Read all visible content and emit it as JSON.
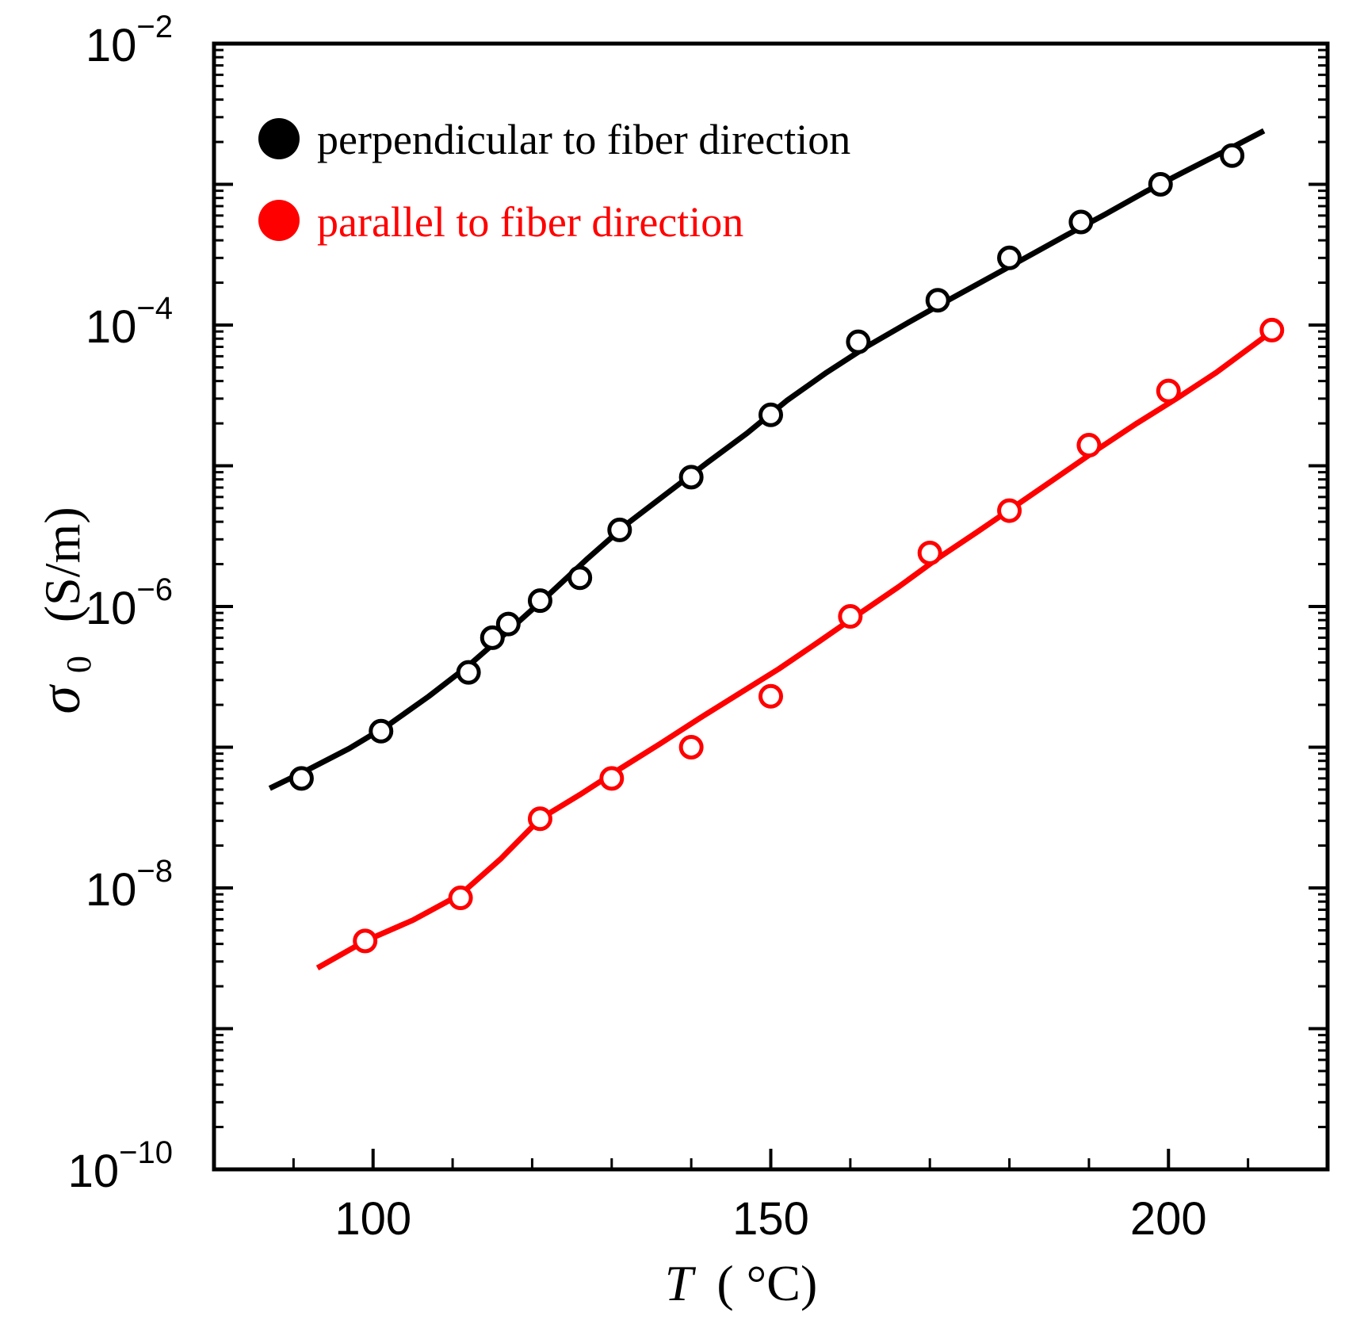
{
  "chart_data": {
    "type": "line",
    "title": "",
    "xlabel": {
      "symbol": "T",
      "unit": "( °C)"
    },
    "ylabel": {
      "symbol": "σ",
      "subscript": "0",
      "unit": "(S/m)"
    },
    "xlim": [
      80,
      220
    ],
    "ylim_exponent": [
      -10,
      -2
    ],
    "yscale": "log",
    "x_ticks": [
      100,
      150,
      200
    ],
    "x_tick_labels": [
      "100",
      "150",
      "200"
    ],
    "y_ticks": [
      {
        "exp": -10,
        "base": "10",
        "sup": "−10"
      },
      {
        "exp": -8,
        "base": "10",
        "sup": "−8"
      },
      {
        "exp": -6,
        "base": "10",
        "sup": "−6"
      },
      {
        "exp": -4,
        "base": "10",
        "sup": "−4"
      },
      {
        "exp": -2,
        "base": "10",
        "sup": "−2"
      }
    ],
    "legend_position": "top-left",
    "series": [
      {
        "name": "perpendicular to fiber direction",
        "color": "#000000",
        "points": [
          {
            "x": 91,
            "y": 6e-08
          },
          {
            "x": 101,
            "y": 1.3e-07
          },
          {
            "x": 112,
            "y": 3.4e-07
          },
          {
            "x": 115,
            "y": 6e-07
          },
          {
            "x": 117,
            "y": 7.5e-07
          },
          {
            "x": 121,
            "y": 1.1e-06
          },
          {
            "x": 126,
            "y": 1.6e-06
          },
          {
            "x": 131,
            "y": 3.5e-06
          },
          {
            "x": 140,
            "y": 8.3e-06
          },
          {
            "x": 150,
            "y": 2.3e-05
          },
          {
            "x": 161,
            "y": 7.6e-05
          },
          {
            "x": 171,
            "y": 0.00015
          },
          {
            "x": 180,
            "y": 0.0003
          },
          {
            "x": 189,
            "y": 0.00054
          },
          {
            "x": 199,
            "y": 0.001
          },
          {
            "x": 208,
            "y": 0.0016
          }
        ],
        "fit": [
          {
            "x": 87,
            "y": 5.1e-08
          },
          {
            "x": 92,
            "y": 7e-08
          },
          {
            "x": 97,
            "y": 9.8e-08
          },
          {
            "x": 102,
            "y": 1.45e-07
          },
          {
            "x": 107,
            "y": 2.3e-07
          },
          {
            "x": 112,
            "y": 3.8e-07
          },
          {
            "x": 117,
            "y": 6.7e-07
          },
          {
            "x": 122,
            "y": 1.2e-06
          },
          {
            "x": 127,
            "y": 2.2e-06
          },
          {
            "x": 132,
            "y": 3.9e-06
          },
          {
            "x": 137,
            "y": 6.4e-06
          },
          {
            "x": 142,
            "y": 1.05e-05
          },
          {
            "x": 147,
            "y": 1.7e-05
          },
          {
            "x": 152,
            "y": 2.9e-05
          },
          {
            "x": 157,
            "y": 4.6e-05
          },
          {
            "x": 162,
            "y": 7e-05
          },
          {
            "x": 167,
            "y": 0.000102
          },
          {
            "x": 172,
            "y": 0.000147
          },
          {
            "x": 177,
            "y": 0.00021
          },
          {
            "x": 182,
            "y": 0.0003
          },
          {
            "x": 187,
            "y": 0.00043
          },
          {
            "x": 192,
            "y": 0.00061
          },
          {
            "x": 197,
            "y": 0.00088
          },
          {
            "x": 202,
            "y": 0.00123
          },
          {
            "x": 207,
            "y": 0.00171
          },
          {
            "x": 212,
            "y": 0.0024
          }
        ]
      },
      {
        "name": "parallel to fiber direction",
        "color": "#ff0000",
        "points": [
          {
            "x": 99,
            "y": 4.2e-09
          },
          {
            "x": 111,
            "y": 8.5e-09
          },
          {
            "x": 121,
            "y": 3.1e-08
          },
          {
            "x": 130,
            "y": 6e-08
          },
          {
            "x": 140,
            "y": 1e-07
          },
          {
            "x": 150,
            "y": 2.3e-07
          },
          {
            "x": 160,
            "y": 8.5e-07
          },
          {
            "x": 170,
            "y": 2.4e-06
          },
          {
            "x": 180,
            "y": 4.8e-06
          },
          {
            "x": 190,
            "y": 1.4e-05
          },
          {
            "x": 200,
            "y": 3.4e-05
          },
          {
            "x": 213,
            "y": 9.2e-05
          }
        ],
        "fit": [
          {
            "x": 93,
            "y": 2.7e-09
          },
          {
            "x": 99,
            "y": 4.2e-09
          },
          {
            "x": 105,
            "y": 5.9e-09
          },
          {
            "x": 111,
            "y": 9e-09
          },
          {
            "x": 116,
            "y": 1.6e-08
          },
          {
            "x": 121,
            "y": 3.1e-08
          },
          {
            "x": 126,
            "y": 4.6e-08
          },
          {
            "x": 131,
            "y": 7e-08
          },
          {
            "x": 136,
            "y": 1.05e-07
          },
          {
            "x": 141,
            "y": 1.6e-07
          },
          {
            "x": 146,
            "y": 2.4e-07
          },
          {
            "x": 151,
            "y": 3.6e-07
          },
          {
            "x": 156,
            "y": 5.6e-07
          },
          {
            "x": 161,
            "y": 8.8e-07
          },
          {
            "x": 166,
            "y": 1.37e-06
          },
          {
            "x": 171,
            "y": 2.2e-06
          },
          {
            "x": 176,
            "y": 3.4e-06
          },
          {
            "x": 181,
            "y": 5.3e-06
          },
          {
            "x": 186,
            "y": 8.3e-06
          },
          {
            "x": 191,
            "y": 1.3e-05
          },
          {
            "x": 196,
            "y": 2e-05
          },
          {
            "x": 201,
            "y": 3e-05
          },
          {
            "x": 206,
            "y": 4.6e-05
          },
          {
            "x": 213,
            "y": 9e-05
          }
        ]
      }
    ]
  }
}
